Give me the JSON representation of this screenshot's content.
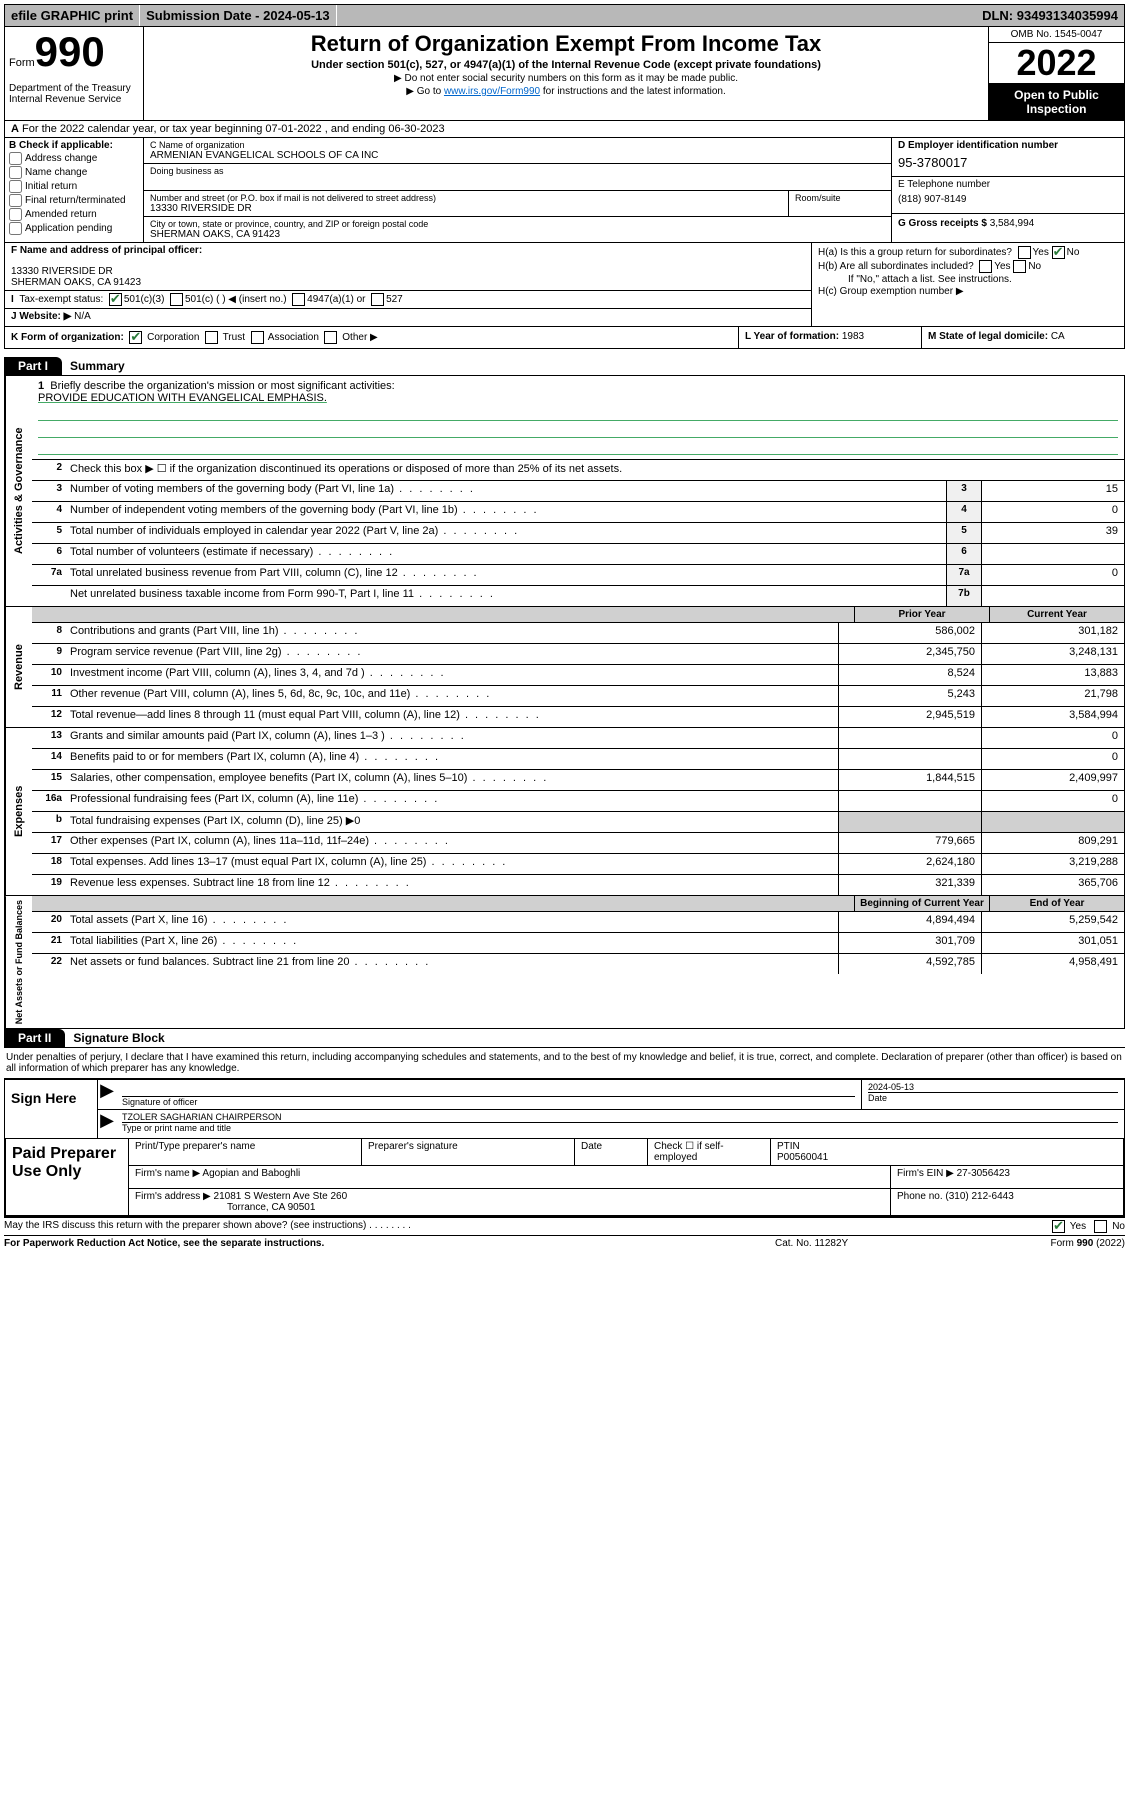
{
  "topbar": {
    "efile": "efile GRAPHIC print",
    "submission_label": "Submission Date - ",
    "submission_date": "2024-05-13",
    "dln_label": "DLN: ",
    "dln": "93493134035994"
  },
  "header": {
    "form": "Form",
    "num": "990",
    "dept": "Department of the Treasury\nInternal Revenue Service",
    "title": "Return of Organization Exempt From Income Tax",
    "subtitle": "Under section 501(c), 527, or 4947(a)(1) of the Internal Revenue Code (except private foundations)",
    "line1": "Do not enter social security numbers on this form as it may be made public.",
    "line2_pre": "Go to ",
    "line2_link": "www.irs.gov/Form990",
    "line2_post": " for instructions and the latest information.",
    "omb": "OMB No. 1545-0047",
    "year": "2022",
    "open": "Open to Public Inspection"
  },
  "rowA": "For the 2022 calendar year, or tax year beginning 07-01-2022   , and ending 06-30-2023",
  "boxB": {
    "title": "B Check if applicable:",
    "opts": [
      "Address change",
      "Name change",
      "Initial return",
      "Final return/terminated",
      "Amended return",
      "Application pending"
    ]
  },
  "boxC": {
    "name_label": "C Name of organization",
    "name": "ARMENIAN EVANGELICAL SCHOOLS OF CA INC",
    "dba_label": "Doing business as",
    "addr_label": "Number and street (or P.O. box if mail is not delivered to street address)",
    "room_label": "Room/suite",
    "addr": "13330 RIVERSIDE DR",
    "city_label": "City or town, state or province, country, and ZIP or foreign postal code",
    "city": "SHERMAN OAKS, CA  91423"
  },
  "boxD": {
    "label": "D Employer identification number",
    "ein": "95-3780017"
  },
  "boxE": {
    "label": "E Telephone number",
    "phone": "(818) 907-8149"
  },
  "boxG": {
    "label": "G Gross receipts $ ",
    "val": "3,584,994"
  },
  "boxF": {
    "label": "F Name and address of principal officer:",
    "addr1": "13330 RIVERSIDE DR",
    "addr2": "SHERMAN OAKS, CA  91423"
  },
  "boxH": {
    "ha": "H(a)  Is this a group return for subordinates?",
    "ha_yes": "Yes",
    "ha_no": "No",
    "hb": "H(b)  Are all subordinates included?",
    "hb_note": "If \"No,\" attach a list. See instructions.",
    "hc": "H(c)  Group exemption number ▶"
  },
  "taxStatus": {
    "label": "Tax-exempt status:",
    "opt1": "501(c)(3)",
    "opt2": "501(c) (   ) ◀ (insert no.)",
    "opt3": "4947(a)(1) or",
    "opt4": "527"
  },
  "boxJ": {
    "label": "J   Website: ▶",
    "val": "N/A"
  },
  "boxK": {
    "label": "K Form of organization:",
    "opts": [
      "Corporation",
      "Trust",
      "Association",
      "Other ▶"
    ]
  },
  "boxL": {
    "label": "L Year of formation: ",
    "val": "1983"
  },
  "boxM": {
    "label": "M State of legal domicile: ",
    "val": "CA"
  },
  "part1": {
    "tab": "Part I",
    "title": "Summary"
  },
  "mission": {
    "prompt": "Briefly describe the organization's mission or most significant activities:",
    "text": "PROVIDE EDUCATION WITH EVANGELICAL EMPHASIS."
  },
  "line2": "Check this box ▶ ☐  if the organization discontinued its operations or disposed of more than 25% of its net assets.",
  "govLines": [
    {
      "n": "3",
      "t": "Number of voting members of the governing body (Part VI, line 1a)",
      "r": "3",
      "v": "15"
    },
    {
      "n": "4",
      "t": "Number of independent voting members of the governing body (Part VI, line 1b)",
      "r": "4",
      "v": "0"
    },
    {
      "n": "5",
      "t": "Total number of individuals employed in calendar year 2022 (Part V, line 2a)",
      "r": "5",
      "v": "39"
    },
    {
      "n": "6",
      "t": "Total number of volunteers (estimate if necessary)",
      "r": "6",
      "v": ""
    },
    {
      "n": "7a",
      "t": "Total unrelated business revenue from Part VIII, column (C), line 12",
      "r": "7a",
      "v": "0"
    },
    {
      "n": "",
      "t": "Net unrelated business taxable income from Form 990-T, Part I, line 11",
      "r": "7b",
      "v": ""
    }
  ],
  "colHeads": {
    "prior": "Prior Year",
    "current": "Current Year",
    "begin": "Beginning of Current Year",
    "end": "End of Year"
  },
  "revLines": [
    {
      "n": "8",
      "t": "Contributions and grants (Part VIII, line 1h)",
      "p": "586,002",
      "c": "301,182"
    },
    {
      "n": "9",
      "t": "Program service revenue (Part VIII, line 2g)",
      "p": "2,345,750",
      "c": "3,248,131"
    },
    {
      "n": "10",
      "t": "Investment income (Part VIII, column (A), lines 3, 4, and 7d )",
      "p": "8,524",
      "c": "13,883"
    },
    {
      "n": "11",
      "t": "Other revenue (Part VIII, column (A), lines 5, 6d, 8c, 9c, 10c, and 11e)",
      "p": "5,243",
      "c": "21,798"
    },
    {
      "n": "12",
      "t": "Total revenue—add lines 8 through 11 (must equal Part VIII, column (A), line 12)",
      "p": "2,945,519",
      "c": "3,584,994"
    }
  ],
  "expLines": [
    {
      "n": "13",
      "t": "Grants and similar amounts paid (Part IX, column (A), lines 1–3 )",
      "p": "",
      "c": "0"
    },
    {
      "n": "14",
      "t": "Benefits paid to or for members (Part IX, column (A), line 4)",
      "p": "",
      "c": "0"
    },
    {
      "n": "15",
      "t": "Salaries, other compensation, employee benefits (Part IX, column (A), lines 5–10)",
      "p": "1,844,515",
      "c": "2,409,997"
    },
    {
      "n": "16a",
      "t": "Professional fundraising fees (Part IX, column (A), line 11e)",
      "p": "",
      "c": "0"
    },
    {
      "n": "b",
      "t": "Total fundraising expenses (Part IX, column (D), line 25) ▶0",
      "p": "",
      "c": "",
      "noval": true
    },
    {
      "n": "17",
      "t": "Other expenses (Part IX, column (A), lines 11a–11d, 11f–24e)",
      "p": "779,665",
      "c": "809,291"
    },
    {
      "n": "18",
      "t": "Total expenses. Add lines 13–17 (must equal Part IX, column (A), line 25)",
      "p": "2,624,180",
      "c": "3,219,288"
    },
    {
      "n": "19",
      "t": "Revenue less expenses. Subtract line 18 from line 12",
      "p": "321,339",
      "c": "365,706"
    }
  ],
  "netLines": [
    {
      "n": "20",
      "t": "Total assets (Part X, line 16)",
      "p": "4,894,494",
      "c": "5,259,542"
    },
    {
      "n": "21",
      "t": "Total liabilities (Part X, line 26)",
      "p": "301,709",
      "c": "301,051"
    },
    {
      "n": "22",
      "t": "Net assets or fund balances. Subtract line 21 from line 20",
      "p": "4,592,785",
      "c": "4,958,491"
    }
  ],
  "part2": {
    "tab": "Part II",
    "title": "Signature Block"
  },
  "sigIntro": "Under penalties of perjury, I declare that I have examined this return, including accompanying schedules and statements, and to the best of my knowledge and belief, it is true, correct, and complete. Declaration of preparer (other than officer) is based on all information of which preparer has any knowledge.",
  "sign": {
    "here": "Sign Here",
    "sig_label": "Signature of officer",
    "date": "2024-05-13",
    "date_label": "Date",
    "name": "TZOLER SAGHARIAN CHAIRPERSON",
    "name_label": "Type or print name and title"
  },
  "paid": {
    "label": "Paid Preparer Use Only",
    "h1": "Print/Type preparer's name",
    "h2": "Preparer's signature",
    "h3": "Date",
    "h4_pre": "Check ☐ if self-employed",
    "h5": "PTIN",
    "ptin": "P00560041",
    "firm_label": "Firm's name    ▶",
    "firm": "Agopian and Baboghli",
    "ein_label": "Firm's EIN ▶",
    "ein": "27-3056423",
    "addr_label": "Firm's address ▶",
    "addr1": "21081 S Western Ave Ste 260",
    "addr2": "Torrance, CA  90501",
    "phone_label": "Phone no. ",
    "phone": "(310) 212-6443"
  },
  "discuss": {
    "q": "May the IRS discuss this return with the preparer shown above? (see instructions)",
    "yes": "Yes",
    "no": "No"
  },
  "footer": {
    "left": "For Paperwork Reduction Act Notice, see the separate instructions.",
    "mid": "Cat. No. 11282Y",
    "right": "Form 990 (2022)"
  },
  "vlabels": {
    "gov": "Activities & Governance",
    "rev": "Revenue",
    "exp": "Expenses",
    "net": "Net Assets or Fund Balances"
  }
}
